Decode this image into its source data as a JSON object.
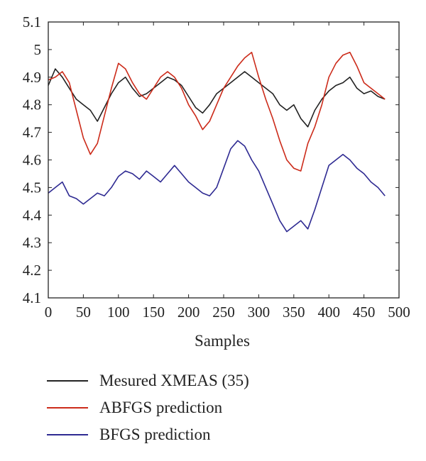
{
  "chart_data": {
    "type": "line",
    "xlabel": "Samples",
    "ylabel": "",
    "xlim": [
      0,
      500
    ],
    "ylim": [
      4.1,
      5.1
    ],
    "xticks": [
      0,
      50,
      100,
      150,
      200,
      250,
      300,
      350,
      400,
      450,
      500
    ],
    "xtick_labels": [
      "0",
      "50",
      "100",
      "150",
      "200",
      "250",
      "300",
      "350",
      "400",
      "450",
      "500"
    ],
    "yticks": [
      4.1,
      4.2,
      4.3,
      4.4,
      4.5,
      4.6,
      4.7,
      4.8,
      4.9,
      5.0,
      5.1
    ],
    "ytick_labels": [
      "4.1",
      "4.2",
      "4.3",
      "4.4",
      "4.5",
      "4.6",
      "4.7",
      "4.8",
      "4.9",
      "5",
      "5.1"
    ],
    "grid": false,
    "legend_placement": "below",
    "series": [
      {
        "name": "Mesured XMEAS (35)",
        "color": "#222222",
        "x": [
          0,
          10,
          20,
          30,
          40,
          50,
          60,
          70,
          80,
          90,
          100,
          110,
          120,
          130,
          140,
          150,
          160,
          170,
          180,
          190,
          200,
          210,
          220,
          230,
          240,
          250,
          260,
          270,
          280,
          290,
          300,
          310,
          320,
          330,
          340,
          350,
          360,
          370,
          380,
          390,
          400,
          410,
          420,
          430,
          440,
          450,
          460,
          470,
          480
        ],
        "y": [
          4.87,
          4.93,
          4.9,
          4.86,
          4.82,
          4.8,
          4.78,
          4.74,
          4.79,
          4.84,
          4.88,
          4.9,
          4.86,
          4.83,
          4.84,
          4.86,
          4.88,
          4.9,
          4.89,
          4.87,
          4.83,
          4.79,
          4.77,
          4.8,
          4.84,
          4.86,
          4.88,
          4.9,
          4.92,
          4.9,
          4.88,
          4.86,
          4.84,
          4.8,
          4.78,
          4.8,
          4.75,
          4.72,
          4.78,
          4.82,
          4.85,
          4.87,
          4.88,
          4.9,
          4.86,
          4.84,
          4.85,
          4.83,
          4.82
        ]
      },
      {
        "name": "ABFGS prediction",
        "color": "#cc2b1a",
        "x": [
          0,
          10,
          20,
          30,
          40,
          50,
          60,
          70,
          80,
          90,
          100,
          110,
          120,
          130,
          140,
          150,
          160,
          170,
          180,
          190,
          200,
          210,
          220,
          230,
          240,
          250,
          260,
          270,
          280,
          290,
          300,
          310,
          320,
          330,
          340,
          350,
          360,
          370,
          380,
          390,
          400,
          410,
          420,
          430,
          440,
          450,
          460,
          470,
          480
        ],
        "y": [
          4.89,
          4.9,
          4.92,
          4.88,
          4.78,
          4.68,
          4.62,
          4.66,
          4.76,
          4.86,
          4.95,
          4.93,
          4.88,
          4.84,
          4.82,
          4.86,
          4.9,
          4.92,
          4.9,
          4.86,
          4.8,
          4.76,
          4.71,
          4.74,
          4.8,
          4.86,
          4.9,
          4.94,
          4.97,
          4.99,
          4.9,
          4.82,
          4.75,
          4.67,
          4.6,
          4.57,
          4.56,
          4.66,
          4.72,
          4.8,
          4.9,
          4.95,
          4.98,
          4.99,
          4.94,
          4.88,
          4.86,
          4.84,
          4.82
        ]
      },
      {
        "name": "BFGS prediction",
        "color": "#2e2a92",
        "x": [
          0,
          10,
          20,
          30,
          40,
          50,
          60,
          70,
          80,
          90,
          100,
          110,
          120,
          130,
          140,
          150,
          160,
          170,
          180,
          190,
          200,
          210,
          220,
          230,
          240,
          250,
          260,
          270,
          280,
          290,
          300,
          310,
          320,
          330,
          340,
          350,
          360,
          370,
          380,
          390,
          400,
          410,
          420,
          430,
          440,
          450,
          460,
          470,
          480
        ],
        "y": [
          4.48,
          4.5,
          4.52,
          4.47,
          4.46,
          4.44,
          4.46,
          4.48,
          4.47,
          4.5,
          4.54,
          4.56,
          4.55,
          4.53,
          4.56,
          4.54,
          4.52,
          4.55,
          4.58,
          4.55,
          4.52,
          4.5,
          4.48,
          4.47,
          4.5,
          4.57,
          4.64,
          4.67,
          4.65,
          4.6,
          4.56,
          4.5,
          4.44,
          4.38,
          4.34,
          4.36,
          4.38,
          4.35,
          4.42,
          4.5,
          4.58,
          4.6,
          4.62,
          4.6,
          4.57,
          4.55,
          4.52,
          4.5,
          4.47
        ]
      }
    ]
  }
}
